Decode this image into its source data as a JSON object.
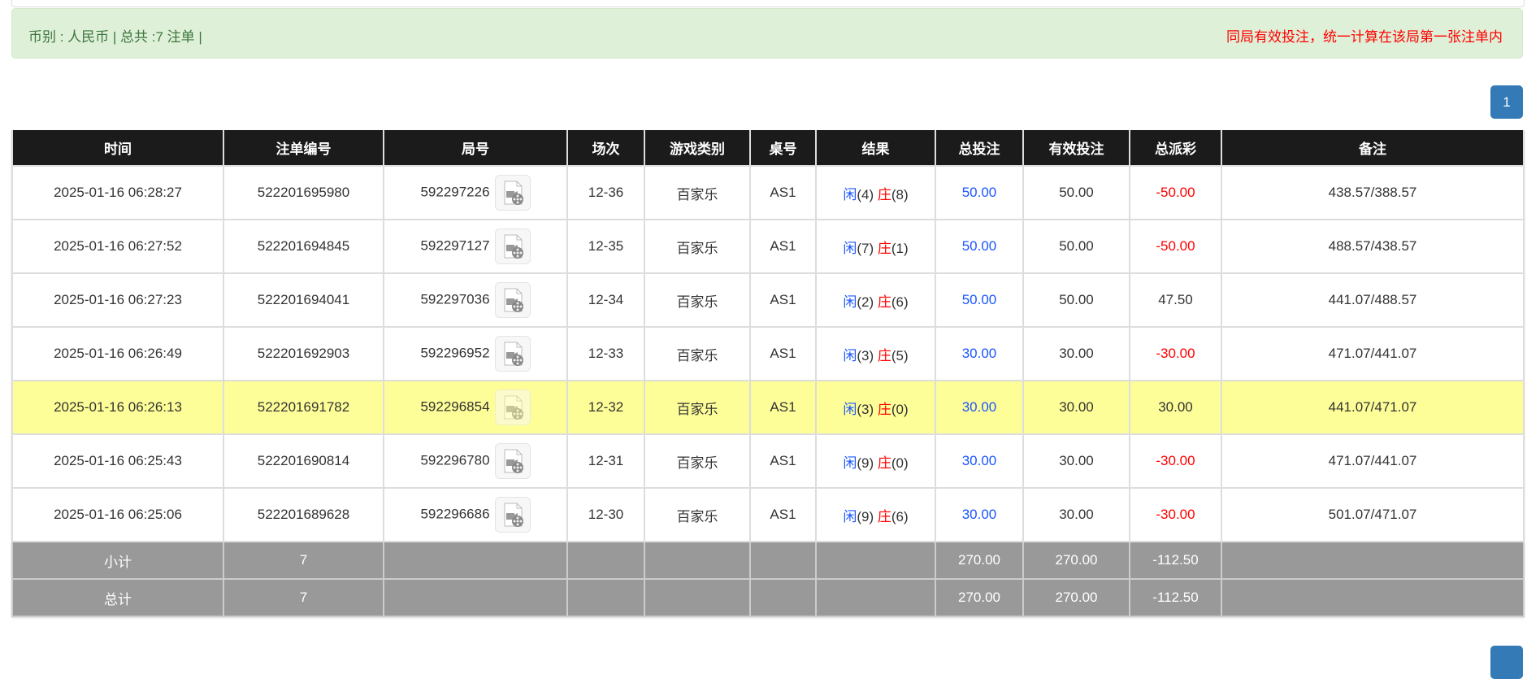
{
  "alert": {
    "summary": "币别 : 人民币 | 总共 :7 注单 |",
    "notice": "同局有效投注，统一计算在该局第一张注单内"
  },
  "pagination": {
    "current_page": "1"
  },
  "colors": {
    "header_bg": "#1b1b1b",
    "highlight_row": "#fefe98",
    "summary_bg": "#999999",
    "player_blue": "#1a55ff",
    "negative_red": "#ff0000",
    "alert_bg": "#dff0d8",
    "pager_blue": "#337ab7"
  },
  "table": {
    "headers": [
      "时间",
      "注单编号",
      "局号",
      "场次",
      "游戏类别",
      "桌号",
      "结果",
      "总投注",
      "有效投注",
      "总派彩",
      "备注"
    ],
    "rows": [
      {
        "time": "2025-01-16 06:28:27",
        "bet_id": "522201695980",
        "round_id": "592297226",
        "shoe": "12-36",
        "game": "百家乐",
        "table": "AS1",
        "player_label": "闲",
        "player_score": "(4)",
        "banker_label": "庄",
        "banker_score": "(8)",
        "total_bet": "50.00",
        "valid_bet": "50.00",
        "payout": "-50.00",
        "payout_negative": true,
        "note": "438.57/388.57",
        "highlighted": false
      },
      {
        "time": "2025-01-16 06:27:52",
        "bet_id": "522201694845",
        "round_id": "592297127",
        "shoe": "12-35",
        "game": "百家乐",
        "table": "AS1",
        "player_label": "闲",
        "player_score": "(7)",
        "banker_label": "庄",
        "banker_score": "(1)",
        "total_bet": "50.00",
        "valid_bet": "50.00",
        "payout": "-50.00",
        "payout_negative": true,
        "note": "488.57/438.57",
        "highlighted": false
      },
      {
        "time": "2025-01-16 06:27:23",
        "bet_id": "522201694041",
        "round_id": "592297036",
        "shoe": "12-34",
        "game": "百家乐",
        "table": "AS1",
        "player_label": "闲",
        "player_score": "(2)",
        "banker_label": "庄",
        "banker_score": "(6)",
        "total_bet": "50.00",
        "valid_bet": "50.00",
        "payout": "47.50",
        "payout_negative": false,
        "note": "441.07/488.57",
        "highlighted": false
      },
      {
        "time": "2025-01-16 06:26:49",
        "bet_id": "522201692903",
        "round_id": "592296952",
        "shoe": "12-33",
        "game": "百家乐",
        "table": "AS1",
        "player_label": "闲",
        "player_score": "(3)",
        "banker_label": "庄",
        "banker_score": "(5)",
        "total_bet": "30.00",
        "valid_bet": "30.00",
        "payout": "-30.00",
        "payout_negative": true,
        "note": "471.07/441.07",
        "highlighted": false
      },
      {
        "time": "2025-01-16 06:26:13",
        "bet_id": "522201691782",
        "round_id": "592296854",
        "shoe": "12-32",
        "game": "百家乐",
        "table": "AS1",
        "player_label": "闲",
        "player_score": "(3)",
        "banker_label": "庄",
        "banker_score": "(0)",
        "total_bet": "30.00",
        "valid_bet": "30.00",
        "payout": "30.00",
        "payout_negative": false,
        "note": "441.07/471.07",
        "highlighted": true
      },
      {
        "time": "2025-01-16 06:25:43",
        "bet_id": "522201690814",
        "round_id": "592296780",
        "shoe": "12-31",
        "game": "百家乐",
        "table": "AS1",
        "player_label": "闲",
        "player_score": "(9)",
        "banker_label": "庄",
        "banker_score": "(0)",
        "total_bet": "30.00",
        "valid_bet": "30.00",
        "payout": "-30.00",
        "payout_negative": true,
        "note": "471.07/441.07",
        "highlighted": false
      },
      {
        "time": "2025-01-16 06:25:06",
        "bet_id": "522201689628",
        "round_id": "592296686",
        "shoe": "12-30",
        "game": "百家乐",
        "table": "AS1",
        "player_label": "闲",
        "player_score": "(9)",
        "banker_label": "庄",
        "banker_score": "(6)",
        "total_bet": "30.00",
        "valid_bet": "30.00",
        "payout": "-30.00",
        "payout_negative": true,
        "note": "501.07/471.07",
        "highlighted": false
      }
    ],
    "summary": [
      {
        "label": "小计",
        "count": "7",
        "total_bet": "270.00",
        "valid_bet": "270.00",
        "payout": "-112.50"
      },
      {
        "label": "总计",
        "count": "7",
        "total_bet": "270.00",
        "valid_bet": "270.00",
        "payout": "-112.50"
      }
    ],
    "row_icon": "video-file-icon"
  }
}
